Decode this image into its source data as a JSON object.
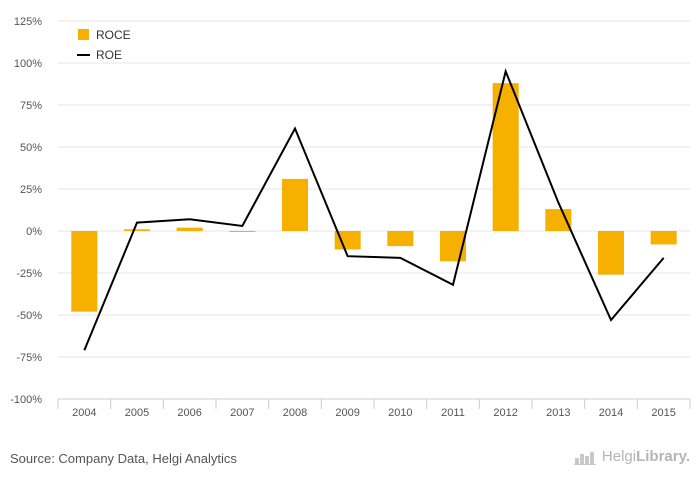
{
  "chart_data": {
    "type": "bar",
    "categories": [
      "2004",
      "2005",
      "2006",
      "2007",
      "2008",
      "2009",
      "2010",
      "2011",
      "2012",
      "2013",
      "2014",
      "2015"
    ],
    "series": [
      {
        "name": "ROCE",
        "kind": "bar",
        "color": "#f5b000",
        "values": [
          -48,
          1,
          2,
          -0.5,
          31,
          -11,
          -9,
          -18,
          88,
          13,
          -26,
          -8
        ]
      },
      {
        "name": "ROE",
        "kind": "line",
        "color": "#000000",
        "values": [
          -71,
          5,
          7,
          3,
          61,
          -15,
          -16,
          -32,
          95,
          17,
          -53,
          -16
        ]
      }
    ],
    "ylim": [
      -100,
      125
    ],
    "yticks": [
      125,
      100,
      75,
      50,
      25,
      0,
      -25,
      -50,
      -75,
      -100
    ],
    "ytick_labels": [
      "125%",
      "100%",
      "75%",
      "50%",
      "25%",
      "0%",
      "-25%",
      "-50%",
      "-75%",
      "-100%"
    ],
    "grid": true,
    "legend_position": "top-left"
  },
  "footer": {
    "source": "Source: Company Data, Helgi Analytics",
    "logo_prefix": "Helgi",
    "logo_suffix": "Library."
  }
}
